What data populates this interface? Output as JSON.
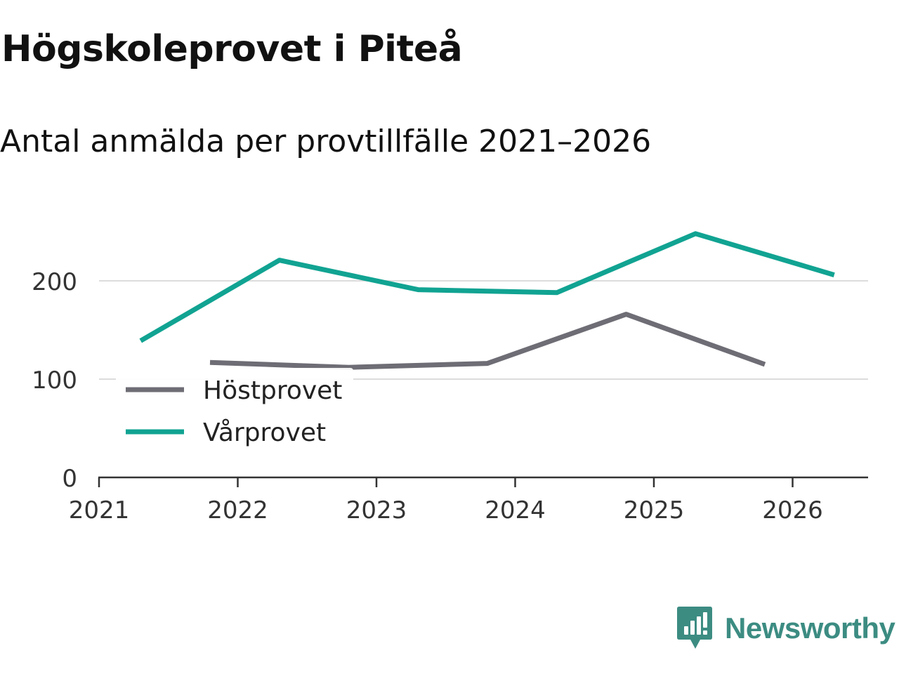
{
  "chart_data": {
    "type": "line",
    "title": "Högskoleprovet i Piteå",
    "subtitle": "Antal anmälda per provtillfälle 2021–2026",
    "xlabel": "",
    "ylabel": "",
    "xlim": [
      2021,
      2026.6
    ],
    "ylim": [
      0,
      260
    ],
    "xticks": [
      2021,
      2022,
      2023,
      2024,
      2025,
      2026
    ],
    "xtick_labels": [
      "2021",
      "2022",
      "2023",
      "2024",
      "2025",
      "2026"
    ],
    "yticks": [
      0,
      100,
      200
    ],
    "ytick_labels": [
      "0",
      "100",
      "200"
    ],
    "grid": true,
    "legend_position": "bottom-left",
    "series": [
      {
        "name": "Höstprovet",
        "color": "#6e6d75",
        "x": [
          2021.8,
          2022.8,
          2023.8,
          2024.8,
          2025.8
        ],
        "values": [
          117,
          112,
          116,
          166,
          115
        ]
      },
      {
        "name": "Vårprovet",
        "color": "#11a392",
        "x": [
          2021.3,
          2022.3,
          2023.3,
          2024.3,
          2025.3,
          2026.3
        ],
        "values": [
          139,
          221,
          191,
          188,
          248,
          206
        ]
      }
    ]
  },
  "brand": {
    "name": "Newsworthy",
    "logo_icon": "newsworthy-logo-icon",
    "color": "#3c8c82"
  }
}
